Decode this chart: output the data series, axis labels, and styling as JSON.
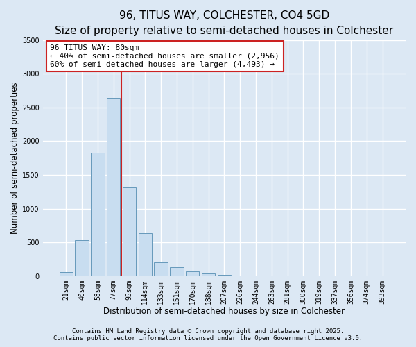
{
  "title": "96, TITUS WAY, COLCHESTER, CO4 5GD",
  "subtitle": "Size of property relative to semi-detached houses in Colchester",
  "xlabel": "Distribution of semi-detached houses by size in Colchester",
  "ylabel": "Number of semi-detached properties",
  "categories": [
    "21sqm",
    "40sqm",
    "58sqm",
    "77sqm",
    "95sqm",
    "114sqm",
    "133sqm",
    "151sqm",
    "170sqm",
    "188sqm",
    "207sqm",
    "226sqm",
    "244sqm",
    "263sqm",
    "281sqm",
    "300sqm",
    "319sqm",
    "337sqm",
    "356sqm",
    "374sqm",
    "393sqm"
  ],
  "values": [
    60,
    530,
    1830,
    2640,
    1310,
    630,
    200,
    130,
    70,
    40,
    20,
    8,
    3,
    2,
    1,
    1,
    0,
    0,
    0,
    0,
    0
  ],
  "vline_x": 3.5,
  "vline_color": "#cc2222",
  "ylim": [
    0,
    3500
  ],
  "yticks": [
    0,
    500,
    1000,
    1500,
    2000,
    2500,
    3000,
    3500
  ],
  "bar_color": "#c8ddf0",
  "bar_edge_color": "#6699bb",
  "annotation_text": "96 TITUS WAY: 80sqm\n← 40% of semi-detached houses are smaller (2,956)\n60% of semi-detached houses are larger (4,493) →",
  "annotation_box_color": "#ffffff",
  "annotation_border_color": "#cc2222",
  "footnote1": "Contains HM Land Registry data © Crown copyright and database right 2025.",
  "footnote2": "Contains public sector information licensed under the Open Government Licence v3.0.",
  "background_color": "#dce8f4",
  "plot_background_color": "#dce8f4",
  "grid_color": "#ffffff",
  "title_fontsize": 11,
  "subtitle_fontsize": 9.5,
  "axis_label_fontsize": 8.5,
  "tick_fontsize": 7,
  "annotation_fontsize": 8,
  "footnote_fontsize": 6.5
}
